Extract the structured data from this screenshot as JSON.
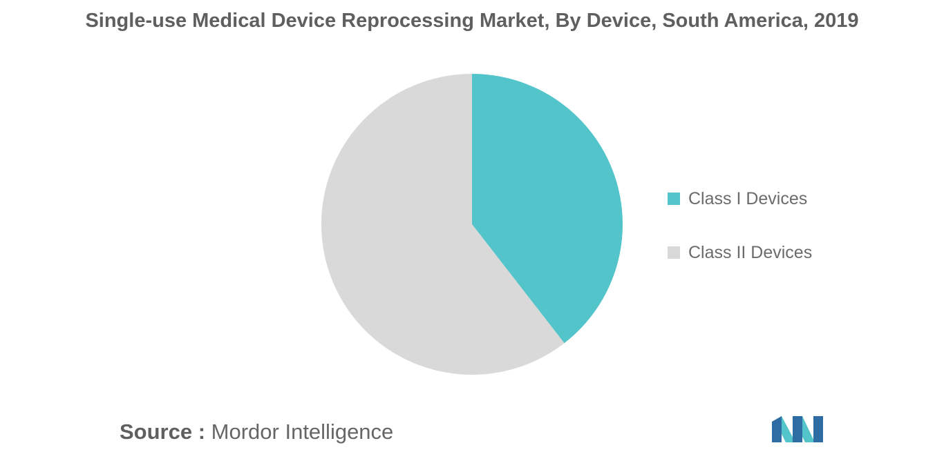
{
  "chart_data": {
    "type": "pie",
    "title": "Single-use Medical Device Reprocessing Market, By Device, South America, 2019",
    "slices": [
      {
        "label": "Class I Devices",
        "value": 39.5,
        "color": "#52c4ca"
      },
      {
        "label": "Class II Devices",
        "value": 60.5,
        "color": "#d9d9d9"
      }
    ],
    "start_angle_deg": 0,
    "direction": "clockwise",
    "legend_position": "right"
  },
  "source": {
    "prefix": "Source :",
    "name": "Mordor Intelligence"
  },
  "logo": {
    "icon": "mordor-intelligence-logo-icon",
    "colors": [
      "#2e6da4",
      "#52c4ca"
    ]
  }
}
